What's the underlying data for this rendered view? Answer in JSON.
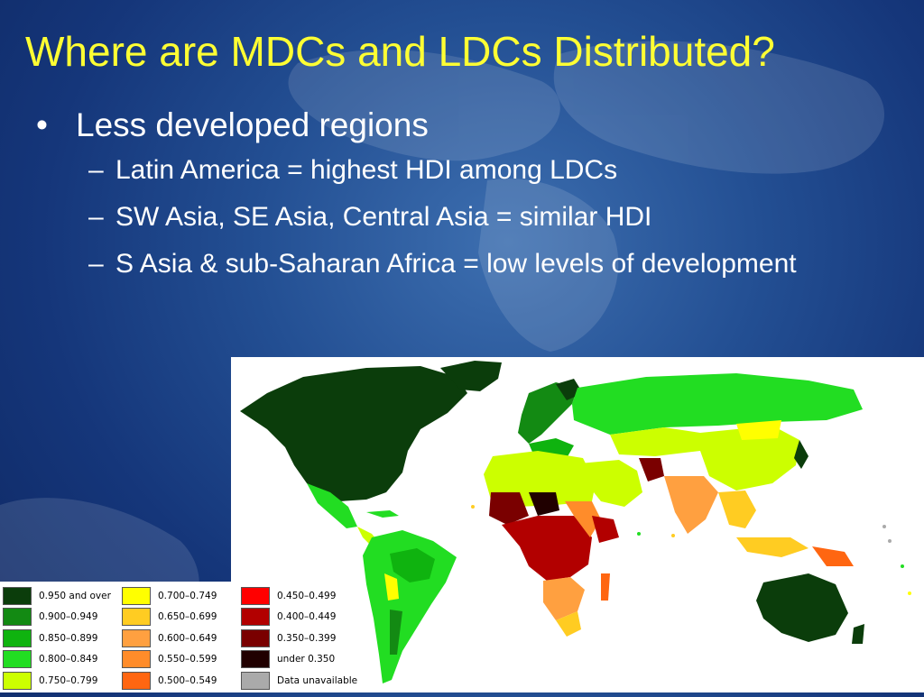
{
  "slide": {
    "title": "Where are MDCs and LDCs Distributed?",
    "bullet": "Less developed regions",
    "bullet_marker": "•",
    "sub_marker": "–",
    "sub_points": [
      "Latin America = highest HDI among LDCs",
      "SW Asia, SE Asia, Central Asia = similar HDI",
      "S Asia & sub-Saharan Africa = low levels of development"
    ]
  },
  "legend": [
    {
      "label": "0.950 and over",
      "color": "#0b3d0b"
    },
    {
      "label": "0.700–0.749",
      "color": "#ffff00"
    },
    {
      "label": "0.450–0.499",
      "color": "#ff0000"
    },
    {
      "label": "0.900–0.949",
      "color": "#138a13"
    },
    {
      "label": "0.650–0.699",
      "color": "#ffcc22"
    },
    {
      "label": "0.400–0.449",
      "color": "#b20000"
    },
    {
      "label": "0.850–0.899",
      "color": "#0fb30f"
    },
    {
      "label": "0.600–0.649",
      "color": "#ffa040"
    },
    {
      "label": "0.350–0.399",
      "color": "#7a0000"
    },
    {
      "label": "0.800–0.849",
      "color": "#22dd22"
    },
    {
      "label": "0.550–0.599",
      "color": "#ff8c2a"
    },
    {
      "label": "under 0.350",
      "color": "#200000"
    },
    {
      "label": "0.750–0.799",
      "color": "#ccff00"
    },
    {
      "label": "0.500–0.549",
      "color": "#ff6611"
    },
    {
      "label": "Data unavailable",
      "color": "#aaaaaa"
    }
  ]
}
